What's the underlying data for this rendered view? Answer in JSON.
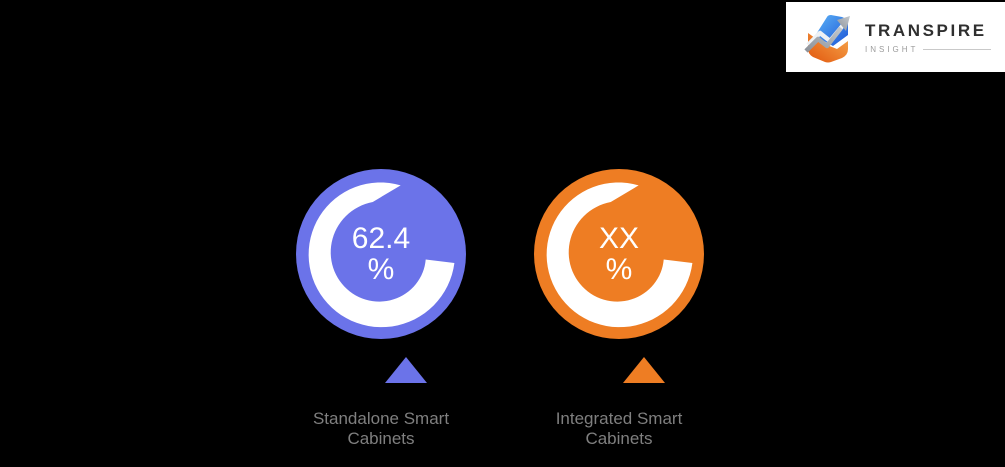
{
  "background": "#000000",
  "logo": {
    "brand": "TRANSPIRE",
    "sub": "INSIGHT",
    "icon": "transpire-logo-icon",
    "colors": {
      "brand_text": "#2F2F2F",
      "sub_text": "#9B9B9B",
      "rule": "#C9C9C9",
      "panel": "#FFFFFF"
    }
  },
  "chart_data": {
    "type": "donut",
    "title": "",
    "legend_position": "below",
    "ring_color": "#FFFFFF",
    "label_color": "#7F7F7F",
    "series": [
      {
        "label": "Standalone Smart Cabinets",
        "value": 62.4,
        "value_lines": [
          "62.4",
          "%"
        ],
        "color": "#6B73E9"
      },
      {
        "label": "Integrated Smart Cabinets",
        "value": "XX",
        "value_lines": [
          "XX",
          "%"
        ],
        "color": "#EE7D23"
      }
    ]
  }
}
